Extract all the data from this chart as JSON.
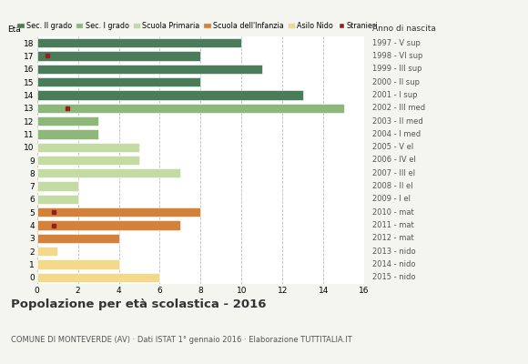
{
  "ages": [
    18,
    17,
    16,
    15,
    14,
    13,
    12,
    11,
    10,
    9,
    8,
    7,
    6,
    5,
    4,
    3,
    2,
    1,
    0
  ],
  "values": [
    10,
    8,
    11,
    8,
    13,
    15,
    3,
    3,
    5,
    5,
    7,
    2,
    2,
    8,
    7,
    4,
    1,
    4,
    6
  ],
  "stranieri": [
    0,
    1,
    0,
    0,
    0,
    1,
    0,
    0,
    0,
    0,
    0,
    0,
    0,
    1,
    1,
    0,
    0,
    0,
    0
  ],
  "stranieri_x": [
    0.0,
    0.5,
    0.0,
    0.0,
    0.0,
    1.5,
    0.0,
    0.0,
    0.0,
    0.0,
    0.0,
    0.0,
    0.0,
    0.8,
    0.8,
    0.0,
    0.0,
    0.0,
    0.0
  ],
  "anno_nascita": [
    "1997 - V sup",
    "1998 - VI sup",
    "1999 - III sup",
    "2000 - II sup",
    "2001 - I sup",
    "2002 - III med",
    "2003 - II med",
    "2004 - I med",
    "2005 - V el",
    "2006 - IV el",
    "2007 - III el",
    "2008 - II el",
    "2009 - I el",
    "2010 - mat",
    "2011 - mat",
    "2012 - mat",
    "2013 - nido",
    "2014 - nido",
    "2015 - nido"
  ],
  "bar_colors": [
    "#4a7c59",
    "#4a7c59",
    "#4a7c59",
    "#4a7c59",
    "#4a7c59",
    "#8db87a",
    "#8db87a",
    "#8db87a",
    "#c5dba4",
    "#c5dba4",
    "#c5dba4",
    "#c5dba4",
    "#c5dba4",
    "#d4813a",
    "#d4813a",
    "#d4813a",
    "#f5d98b",
    "#f5d98b",
    "#f5d98b"
  ],
  "legend_labels": [
    "Sec. II grado",
    "Sec. I grado",
    "Scuola Primaria",
    "Scuola dell'Infanzia",
    "Asilo Nido",
    "Stranieri"
  ],
  "legend_colors": [
    "#4a7c59",
    "#8db87a",
    "#c5dba4",
    "#d4813a",
    "#f5d98b",
    "#9b1c1c"
  ],
  "title": "Popolazione per età scolastica - 2016",
  "subtitle": "COMUNE DI MONTEVERDE (AV) · Dati ISTAT 1° gennaio 2016 · Elaborazione TUTTITALIA.IT",
  "xlabel_age": "Età",
  "xlabel_anno": "Anno di nascita",
  "xlim": [
    0,
    16
  ],
  "stranieri_color": "#9b1c1c",
  "bg_color": "#f5f5f0",
  "bar_bg_color": "#ffffff",
  "grid_color": "#bbbbbb"
}
